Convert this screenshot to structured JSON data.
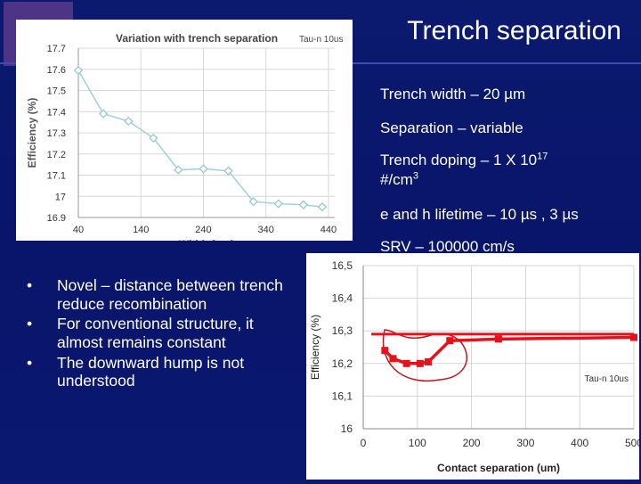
{
  "slide": {
    "title": "Trench separation",
    "right_bullets": [
      "Trench width – 20 µm",
      "Separation – variable",
      "Trench doping – 1 X 10",
      "#/cm",
      "e and h lifetime – 10 µs , 3 µs",
      "SRV – 100000 cm/s"
    ],
    "doping_exponent": "17",
    "doping_unit_exponent": "3",
    "left_bullets": [
      "Novel – distance between trench reduce recombination",
      "For conventional structure, it almost remains constant",
      "The downward hump is not understood"
    ],
    "bullet_symbol": "•"
  },
  "chart_data": [
    {
      "type": "line",
      "title": "Variation with trench separation",
      "annotation": "Tau-n 10us",
      "xlabel": "Width (um)",
      "ylabel": "Efficiency (%)",
      "xticks": [
        "40",
        "140",
        "240",
        "340",
        "440"
      ],
      "yticks": [
        "17.7",
        "17.6",
        "17.5",
        "17.4",
        "17.3",
        "17.2",
        "17.1",
        "17",
        "16.9"
      ],
      "xlim": [
        40,
        450
      ],
      "ylim": [
        16.9,
        17.7
      ],
      "x": [
        40,
        80,
        120,
        160,
        200,
        240,
        280,
        320,
        360,
        400,
        430
      ],
      "y": [
        17.595,
        17.39,
        17.355,
        17.275,
        17.125,
        17.13,
        17.12,
        16.975,
        16.965,
        16.96,
        16.95
      ],
      "color": "#9fd0da",
      "grid": true
    },
    {
      "type": "line",
      "title": "",
      "annotation": "Tau-n 10us",
      "xlabel": "Contact separation (um)",
      "ylabel": "Efficiency (%)",
      "xticks": [
        "0",
        "100",
        "200",
        "300",
        "400",
        "500"
      ],
      "yticks": [
        "16,5",
        "16,4",
        "16,3",
        "16,2",
        "16,1",
        "16"
      ],
      "xlim": [
        0,
        500
      ],
      "ylim": [
        16,
        16.5
      ],
      "x": [
        40,
        55,
        80,
        105,
        120,
        160,
        250,
        500
      ],
      "y": [
        16.24,
        16.215,
        16.2,
        16.2,
        16.205,
        16.27,
        16.275,
        16.28
      ],
      "color": "#e8101a",
      "grid": true
    }
  ]
}
